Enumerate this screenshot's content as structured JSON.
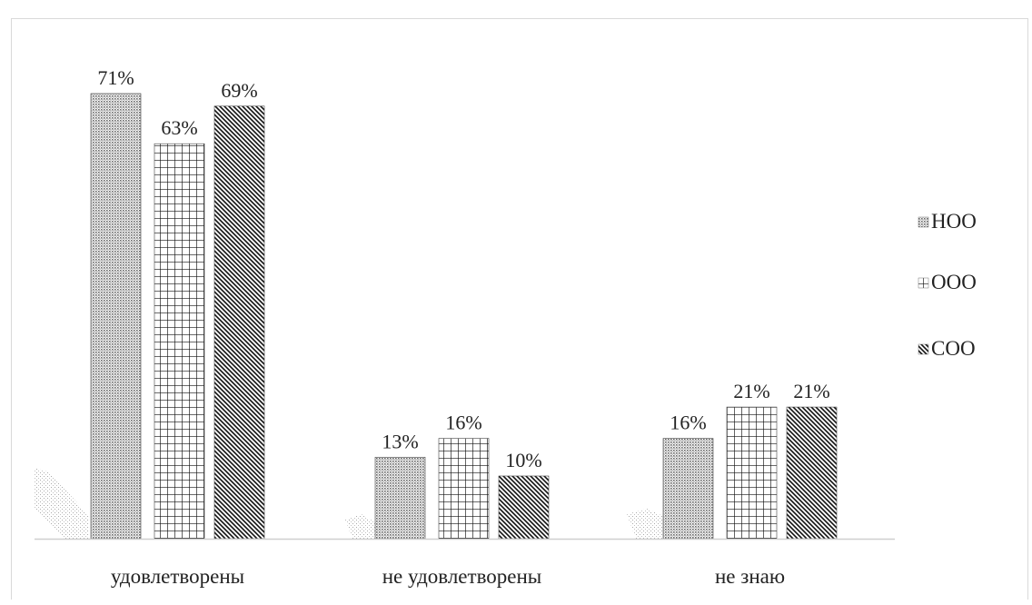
{
  "chart_data": {
    "type": "bar",
    "categories": [
      "удовлетворены",
      "не удовлетворены",
      "не знаю"
    ],
    "series": [
      {
        "name": "НОО",
        "values": [
          71,
          13,
          16
        ],
        "pattern": "dots"
      },
      {
        "name": "ООО",
        "values": [
          63,
          16,
          21
        ],
        "pattern": "grid"
      },
      {
        "name": "СОО",
        "values": [
          69,
          10,
          21
        ],
        "pattern": "diagonal"
      }
    ],
    "value_suffix": "%",
    "ylim": [
      0,
      71
    ],
    "grid": false,
    "legend_position": "right",
    "colors": {
      "ink": "#111111",
      "axis": "#cfcfcf",
      "text": "#222222"
    }
  }
}
